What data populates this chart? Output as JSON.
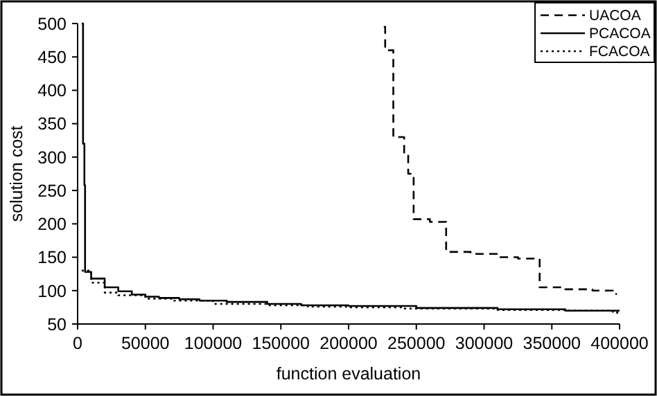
{
  "chart_data": {
    "type": "step",
    "xlabel": "function evaluation",
    "ylabel": "solution cost",
    "xlim": [
      0,
      400000
    ],
    "ylim": [
      50,
      500
    ],
    "xticks": [
      0,
      50000,
      100000,
      150000,
      200000,
      250000,
      300000,
      350000,
      400000
    ],
    "yticks": [
      50,
      100,
      150,
      200,
      250,
      300,
      350,
      400,
      450,
      500
    ],
    "grid": false,
    "legend": "top right",
    "series": [
      {
        "name": "UACOA",
        "color": "#000000",
        "line_style": "dashed",
        "x": [
          226000,
          227000,
          233000,
          241000,
          244000,
          248000,
          260000,
          272000,
          290000,
          310000,
          325000,
          341000,
          360000,
          380000,
          395000,
          398000
        ],
        "values": [
          495,
          460,
          330,
          305,
          275,
          207,
          203,
          158,
          155,
          150,
          148,
          105,
          102,
          100,
          95,
          95
        ]
      },
      {
        "name": "PCACOA",
        "color": "#000000",
        "line_style": "solid",
        "x": [
          3000,
          4000,
          5000,
          5500,
          10000,
          20000,
          30000,
          40000,
          50000,
          60000,
          75000,
          90000,
          110000,
          140000,
          165000,
          200000,
          250000,
          310000,
          360000,
          400000
        ],
        "values": [
          500,
          320,
          258,
          128,
          118,
          105,
          99,
          94,
          91,
          89,
          87,
          85,
          83,
          80,
          78,
          77,
          74,
          72,
          70,
          70
        ]
      },
      {
        "name": "FCACOA",
        "color": "#000000",
        "line_style": "dotted",
        "x": [
          3000,
          10000,
          20000,
          30000,
          50000,
          70000,
          100000,
          140000,
          170000,
          200000,
          240000,
          310000,
          360000,
          395000,
          400000
        ],
        "values": [
          130,
          112,
          97,
          93,
          88,
          85,
          80,
          78,
          76,
          75,
          73,
          71,
          70,
          67,
          67
        ]
      }
    ]
  }
}
